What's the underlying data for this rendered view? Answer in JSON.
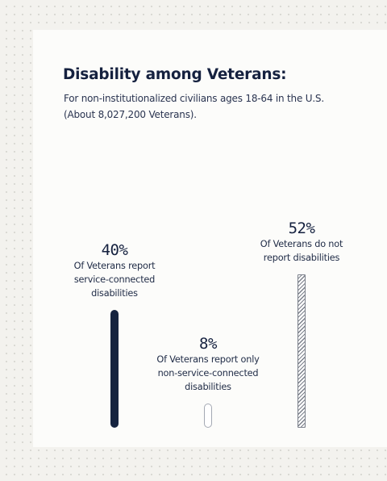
{
  "chart_data": {
    "type": "bar",
    "title": "Disability among Veterans:",
    "subtitle_lines": [
      "For non-institutionalized civilians ages 18-64 in the U.S.",
      "(About 8,027,200 Veterans)."
    ],
    "ylim": [
      0,
      52
    ],
    "series": [
      {
        "percent_label": "40%",
        "value": 40,
        "style": "solid",
        "color": "#15233f",
        "description_lines": [
          "Of Veterans report",
          "service-connected",
          "disabilities"
        ]
      },
      {
        "percent_label": "8%",
        "value": 8,
        "style": "outline",
        "color": "#ffffff",
        "description_lines": [
          "Of Veterans report only",
          "non-service-connected",
          "disabilities"
        ]
      },
      {
        "percent_label": "52%",
        "value": 52,
        "style": "hatched",
        "color": "#7c818b",
        "description_lines": [
          "Of Veterans do not",
          "report disabilities"
        ]
      }
    ]
  }
}
